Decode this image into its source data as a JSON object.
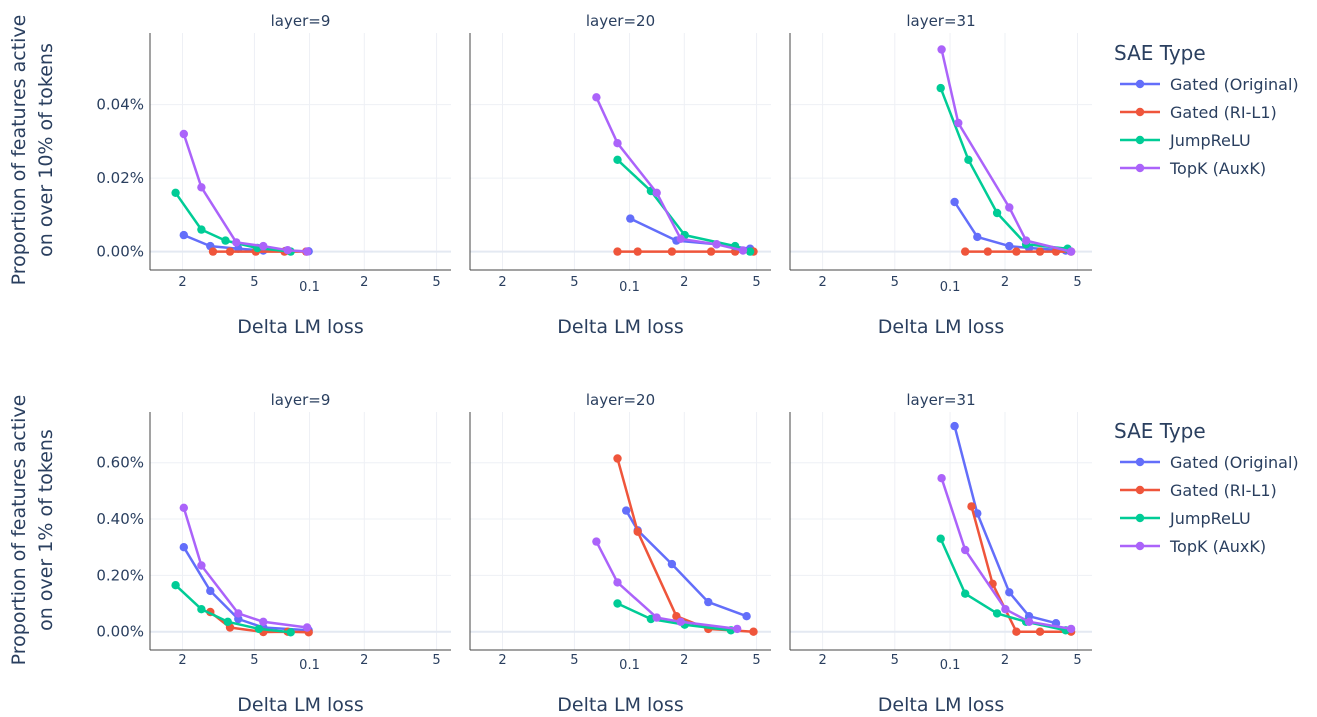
{
  "figure": {
    "xaxis_label": "Delta LM loss",
    "legend_title": "SAE Type",
    "x_tick_labels": [
      "2",
      "5",
      "0.1",
      "2",
      "5"
    ],
    "series_names": [
      "Gated (Original)",
      "Gated (RI-L1)",
      "JumpReLU",
      "TopK (AuxK)"
    ],
    "series_colors": [
      "#636efa",
      "#ef553b",
      "#00cc96",
      "#ab63fa"
    ]
  },
  "chart_data": [
    {
      "type": "line",
      "row_ylabel": [
        "Proportion of features active",
        "on over 10% of tokens"
      ],
      "yticks": [
        0,
        0.02,
        0.04
      ],
      "ytick_labels": [
        "0.00%",
        "0.02%",
        "0.04%"
      ],
      "ylim": [
        -0.005,
        0.0595
      ],
      "xscale": "log",
      "xlim": [
        0.013,
        0.6
      ],
      "panels": [
        {
          "title": "layer=9",
          "series": [
            {
              "name": "Gated (Original)",
              "x": [
                0.02,
                0.028,
                0.04,
                0.055,
                0.073,
                0.098
              ],
              "y": [
                0.0045,
                0.0015,
                0.0008,
                0.0003,
                0.0002,
                0.0001
              ]
            },
            {
              "name": "Gated (RI-L1)",
              "x": [
                0.029,
                0.036,
                0.05,
                0.072,
                0.095
              ],
              "y": [
                0.0,
                0.0,
                0.0,
                0.0,
                0.0
              ]
            },
            {
              "name": "JumpReLU",
              "x": [
                0.018,
                0.025,
                0.034,
                0.051,
                0.078
              ],
              "y": [
                0.016,
                0.006,
                0.003,
                0.001,
                0.0
              ]
            },
            {
              "name": "TopK (AuxK)",
              "x": [
                0.02,
                0.025,
                0.039,
                0.055,
                0.075,
                0.096
              ],
              "y": [
                0.032,
                0.0175,
                0.0025,
                0.0015,
                0.0004,
                0.0
              ]
            }
          ]
        },
        {
          "title": "layer=20",
          "series": [
            {
              "name": "Gated (Original)",
              "x": [
                0.1,
                0.18,
                0.3,
                0.46
              ],
              "y": [
                0.009,
                0.003,
                0.002,
                0.0008
              ]
            },
            {
              "name": "Gated (RI-L1)",
              "x": [
                0.085,
                0.11,
                0.17,
                0.28,
                0.38,
                0.48
              ],
              "y": [
                0.0,
                0.0,
                0.0,
                0.0,
                0.0,
                0.0
              ]
            },
            {
              "name": "JumpReLU",
              "x": [
                0.085,
                0.13,
                0.2,
                0.38,
                0.46
              ],
              "y": [
                0.025,
                0.0165,
                0.0045,
                0.0015,
                0.0
              ]
            },
            {
              "name": "TopK (AuxK)",
              "x": [
                0.065,
                0.085,
                0.14,
                0.19,
                0.3,
                0.42
              ],
              "y": [
                0.042,
                0.0295,
                0.016,
                0.0035,
                0.002,
                0.0003
              ]
            }
          ]
        },
        {
          "title": "layer=31",
          "series": [
            {
              "name": "Gated (Original)",
              "x": [
                0.105,
                0.14,
                0.21,
                0.27,
                0.43
              ],
              "y": [
                0.0135,
                0.004,
                0.0015,
                0.001,
                0.0003
              ]
            },
            {
              "name": "Gated (RI-L1)",
              "x": [
                0.12,
                0.16,
                0.23,
                0.31,
                0.38,
                0.46
              ],
              "y": [
                0.0,
                0.0,
                0.0,
                0.0,
                0.0,
                0.0
              ]
            },
            {
              "name": "JumpReLU",
              "x": [
                0.088,
                0.125,
                0.18,
                0.26,
                0.44
              ],
              "y": [
                0.0445,
                0.025,
                0.0105,
                0.002,
                0.0008
              ]
            },
            {
              "name": "TopK (AuxK)",
              "x": [
                0.089,
                0.11,
                0.21,
                0.26,
                0.46
              ],
              "y": [
                0.055,
                0.035,
                0.012,
                0.003,
                0.0
              ]
            }
          ]
        }
      ]
    },
    {
      "type": "line",
      "row_ylabel": [
        "Proportion of features active",
        "on over 1% of tokens"
      ],
      "yticks": [
        0,
        0.2,
        0.4,
        0.6
      ],
      "ytick_labels": [
        "0.00%",
        "0.20%",
        "0.40%",
        "0.60%"
      ],
      "ylim": [
        -0.065,
        0.78
      ],
      "xscale": "log",
      "xlim": [
        0.013,
        0.6
      ],
      "panels": [
        {
          "title": "layer=9",
          "series": [
            {
              "name": "Gated (Original)",
              "x": [
                0.02,
                0.028,
                0.04,
                0.055,
                0.098
              ],
              "y": [
                0.3,
                0.145,
                0.045,
                0.015,
                0.005
              ]
            },
            {
              "name": "Gated (RI-L1)",
              "x": [
                0.028,
                0.036,
                0.055,
                0.075,
                0.098
              ],
              "y": [
                0.07,
                0.015,
                -0.001,
                0.0,
                -0.002
              ]
            },
            {
              "name": "JumpReLU",
              "x": [
                0.018,
                0.025,
                0.035,
                0.052,
                0.078
              ],
              "y": [
                0.165,
                0.08,
                0.035,
                0.01,
                -0.002
              ]
            },
            {
              "name": "TopK (AuxK)",
              "x": [
                0.02,
                0.025,
                0.04,
                0.055,
                0.096
              ],
              "y": [
                0.44,
                0.235,
                0.065,
                0.035,
                0.015
              ]
            }
          ]
        },
        {
          "title": "layer=20",
          "series": [
            {
              "name": "Gated (Original)",
              "x": [
                0.095,
                0.11,
                0.17,
                0.27,
                0.44
              ],
              "y": [
                0.43,
                0.36,
                0.24,
                0.105,
                0.055
              ]
            },
            {
              "name": "Gated (RI-L1)",
              "x": [
                0.085,
                0.11,
                0.18,
                0.27,
                0.48
              ],
              "y": [
                0.615,
                0.355,
                0.055,
                0.01,
                0.0
              ]
            },
            {
              "name": "JumpReLU",
              "x": [
                0.085,
                0.13,
                0.2,
                0.36
              ],
              "y": [
                0.1,
                0.045,
                0.025,
                0.005
              ]
            },
            {
              "name": "TopK (AuxK)",
              "x": [
                0.065,
                0.085,
                0.14,
                0.19,
                0.39
              ],
              "y": [
                0.32,
                0.175,
                0.05,
                0.035,
                0.01
              ]
            }
          ]
        },
        {
          "title": "layer=31",
          "series": [
            {
              "name": "Gated (Original)",
              "x": [
                0.105,
                0.14,
                0.21,
                0.27,
                0.38
              ],
              "y": [
                0.73,
                0.42,
                0.14,
                0.055,
                0.03
              ]
            },
            {
              "name": "Gated (RI-L1)",
              "x": [
                0.13,
                0.17,
                0.23,
                0.31,
                0.46
              ],
              "y": [
                0.445,
                0.17,
                0.0,
                0.0,
                0.0
              ]
            },
            {
              "name": "JumpReLU",
              "x": [
                0.088,
                0.12,
                0.18,
                0.26,
                0.43
              ],
              "y": [
                0.33,
                0.135,
                0.065,
                0.035,
                0.005
              ]
            },
            {
              "name": "TopK (AuxK)",
              "x": [
                0.089,
                0.12,
                0.2,
                0.27,
                0.46
              ],
              "y": [
                0.545,
                0.29,
                0.08,
                0.035,
                0.01
              ]
            }
          ]
        }
      ]
    }
  ]
}
